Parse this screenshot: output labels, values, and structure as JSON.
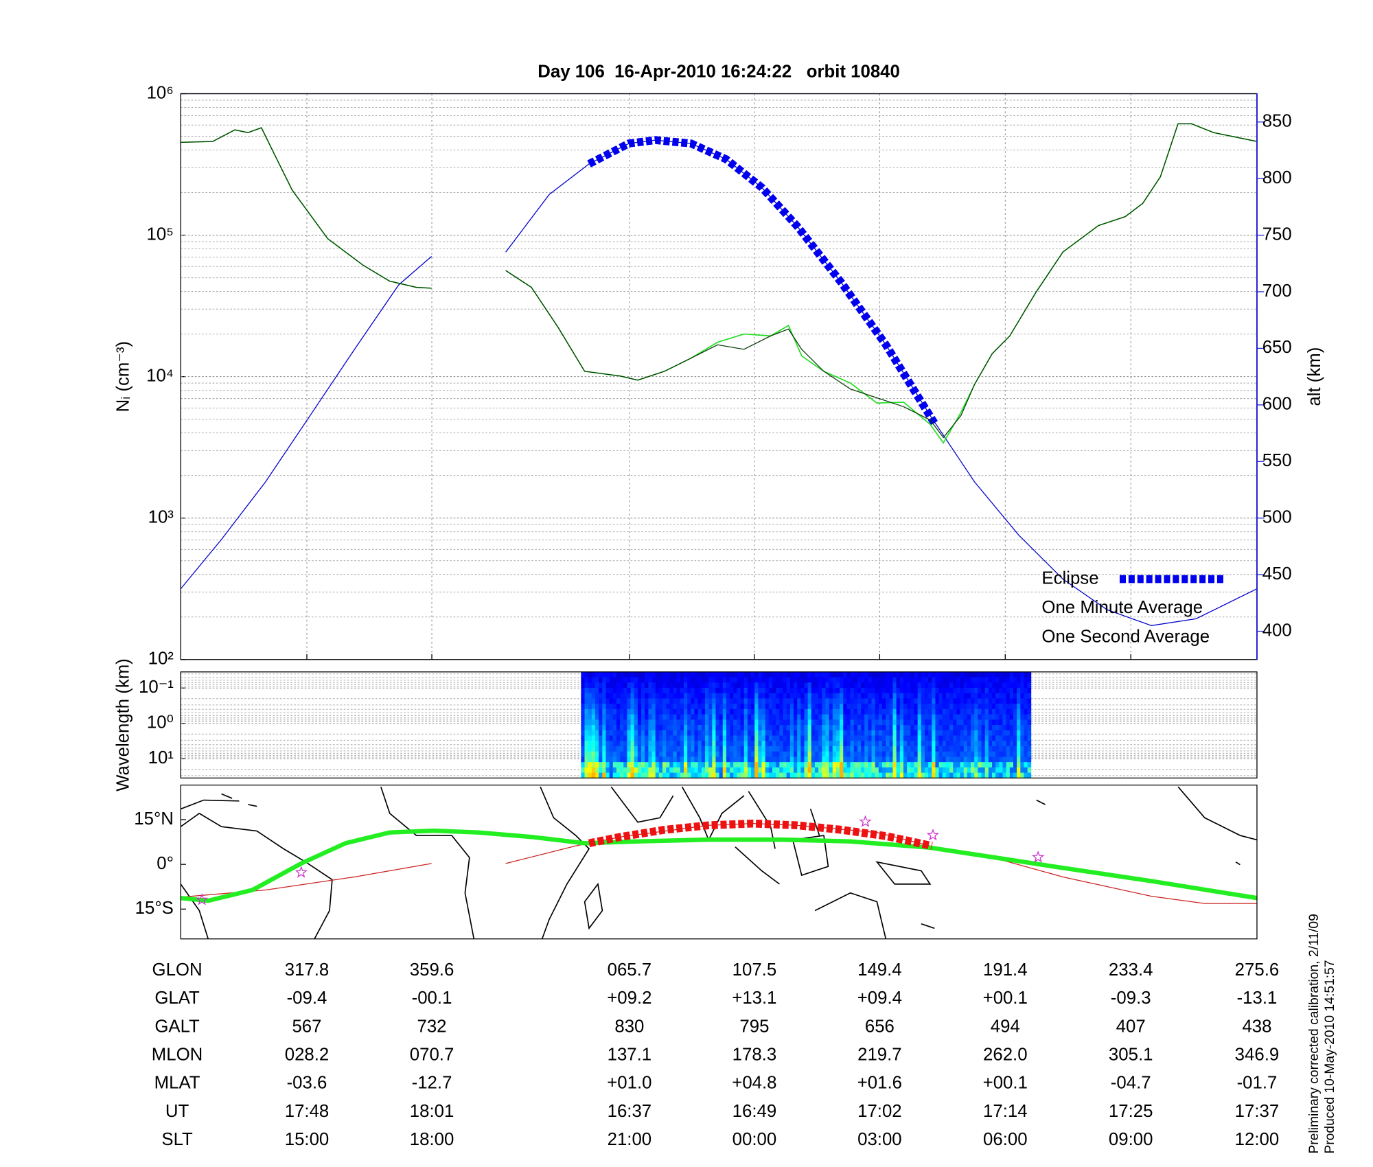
{
  "chart_data": [
    {
      "type": "line",
      "title": "Day 106  16-Apr-2010 16:24:22   orbit 10840",
      "ylabel": "Nᵢ (cm⁻³)",
      "y2label": "alt (km)",
      "xlim": [
        275.6,
        635.6
      ],
      "xticks": [
        317.8,
        359.6,
        425.7,
        467.5,
        509.4,
        551.4,
        593.4,
        635.6
      ],
      "ylim": [
        100,
        1000000
      ],
      "ylog": true,
      "yticks": [
        {
          "value": 100,
          "label": "10²"
        },
        {
          "value": 1000,
          "label": "10³"
        },
        {
          "value": 10000,
          "label": "10⁴"
        },
        {
          "value": 100000,
          "label": "10⁵"
        },
        {
          "value": 1000000,
          "label": "10⁶"
        }
      ],
      "y2lim": [
        375,
        875
      ],
      "y2ticks": [
        400,
        450,
        500,
        550,
        600,
        650,
        700,
        750,
        800,
        850
      ],
      "y2color": "#2020d0",
      "grid": true,
      "legend": "lower right",
      "series": [
        {
          "axis": "y2",
          "color": "#0000cc",
          "line_width": 1,
          "x": [
            275.6,
            289.2,
            304.0,
            318.9,
            333.7,
            348.5,
            359.5,
            372.0,
            384.3,
            398.9,
            412.2,
            425.5,
            434.4,
            446.3,
            458.1,
            470.0,
            481.8,
            496.6,
            511.5,
            526.3,
            541.1,
            555.9,
            570.7,
            585.5,
            600.3,
            615.2,
            635.6
          ],
          "values": [
            437.5,
            481,
            532,
            590.6,
            649,
            706,
            731.25,
            null,
            735,
            786,
            813,
            831,
            834,
            831,
            817,
            792,
            758,
            708,
            653,
            590.6,
            532,
            485,
            446,
            419,
            405,
            411,
            437.5
          ]
        },
        {
          "name": "Eclipse",
          "axis": "y2",
          "color": "#0000ee",
          "line_width": 9,
          "dash": true,
          "x": [
            412.2,
            425.5,
            434.4,
            446.3,
            458.1,
            470.0,
            481.8,
            496.6,
            511.5,
            527.7
          ],
          "values": [
            813,
            831,
            834,
            831,
            817,
            792,
            758,
            708,
            653,
            584
          ]
        },
        {
          "name": "One Second Average",
          "color": "#22dd22",
          "line_width": 1.3,
          "x": [
            275.6,
            286.3,
            293.7,
            298.1,
            302.6,
            307.0,
            312.9,
            324.8,
            336.6,
            345.5,
            354.4,
            359.5,
            372.0,
            384.3,
            392.9,
            401.8,
            410.7,
            422.6,
            428.5,
            437.4,
            446.3,
            455.2,
            464.0,
            472.9,
            478.9,
            483.3,
            490.7,
            499.6,
            508.5,
            517.4,
            526.3,
            530.7,
            536.6,
            541.1,
            547.0,
            552.9,
            561.8,
            570.7,
            582.6,
            591.5,
            597.4,
            603.3,
            609.2,
            613.7,
            621.1,
            635.6
          ],
          "values": [
            453000,
            460000,
            555000,
            531000,
            575000,
            371000,
            208000,
            94400,
            61300,
            47300,
            42800,
            42200,
            null,
            56200,
            42800,
            22400,
            10900,
            10100,
            9440,
            10900,
            13500,
            17500,
            20000,
            19400,
            23000,
            14000,
            10900,
            9000,
            6500,
            6600,
            4600,
            3400,
            5600,
            8790,
            14500,
            19400,
            39800,
            76100,
            117000,
            135000,
            168000,
            259000,
            613000,
            613000,
            531000,
            460000
          ]
        },
        {
          "name": "One Minute Average",
          "color": "#0b3d0b",
          "line_width": 1,
          "x": [
            275.6,
            286.3,
            293.7,
            298.1,
            302.6,
            307.0,
            312.9,
            324.8,
            336.6,
            345.5,
            354.4,
            359.5,
            372.0,
            384.3,
            392.9,
            401.8,
            410.7,
            422.6,
            428.5,
            437.4,
            446.3,
            455.2,
            464.0,
            472.9,
            478.9,
            483.3,
            490.7,
            499.6,
            508.5,
            517.4,
            526.3,
            530.7,
            536.6,
            541.1,
            547.0,
            552.9,
            561.8,
            570.7,
            582.6,
            591.5,
            597.4,
            603.3,
            609.2,
            613.7,
            621.1,
            635.6
          ],
          "values": [
            453000,
            460000,
            555000,
            531000,
            575000,
            371000,
            208000,
            94400,
            61300,
            47300,
            42800,
            42200,
            null,
            56200,
            42800,
            22400,
            10900,
            10100,
            9440,
            10900,
            13500,
            16800,
            15600,
            19400,
            21700,
            15600,
            10900,
            8180,
            7080,
            6130,
            4940,
            3710,
            5310,
            8790,
            14500,
            19400,
            39800,
            76100,
            117000,
            135000,
            168000,
            259000,
            613000,
            613000,
            531000,
            460000
          ]
        }
      ]
    },
    {
      "type": "spectrogram",
      "ylabel": "Wavelength (km)",
      "xlim": [
        275.6,
        635.6
      ],
      "xrange": [
        409.5,
        560.0
      ],
      "ylim": [
        35,
        0.035
      ],
      "ylog": true,
      "yticks": [
        {
          "value": 0.1,
          "label": "10⁻¹"
        },
        {
          "value": 1,
          "label": "10⁰"
        },
        {
          "value": 10,
          "label": "10¹"
        }
      ]
    },
    {
      "type": "map",
      "xlim": [
        275.6,
        635.6
      ],
      "ylim": [
        -25,
        26.6
      ],
      "yticks": [
        {
          "value": -15,
          "label": "15°S"
        },
        {
          "value": 0,
          "label": "0°"
        },
        {
          "value": 15,
          "label": "15°N"
        }
      ],
      "series": [
        {
          "color": "#cc2222",
          "line_width": 1,
          "x": [
            275.6,
            304.0,
            333.7,
            359.5,
            372.0,
            384.3,
            407.7,
            422.6,
            452.2,
            467.0,
            481.8,
            508.5,
            526.3,
            551.2,
            570.7,
            600.3,
            618.1,
            635.6
          ],
          "values": [
            -11.0,
            -8.6,
            -4.2,
            0.3,
            null,
            0.3,
            6.2,
            9.2,
            13.1,
            13.7,
            13.1,
            10.7,
            6.2,
            1.2,
            -4.2,
            -10.7,
            -13.1,
            -13.1
          ]
        },
        {
          "color": "#22ee22",
          "line_width": 5,
          "x": [
            275.6,
            284.8,
            299.6,
            315.9,
            330.7,
            345.5,
            360.3,
            375.2,
            393.0,
            410.7,
            428.5,
            452.2,
            476.0,
            499.6,
            526.3,
            551.2,
            570.7,
            600.3,
            635.6
          ],
          "values": [
            -11.3,
            -12.2,
            -8.6,
            0.3,
            7.1,
            10.7,
            11.3,
            10.7,
            9.2,
            7.1,
            7.7,
            8.3,
            8.3,
            7.7,
            5.6,
            1.8,
            -1.2,
            -5.6,
            -11.3
          ]
        },
        {
          "color": "#ee1111",
          "line_width": 9,
          "dash": true,
          "x": [
            412.2,
            422.6,
            437.4,
            452.2,
            467.0,
            481.8,
            496.6,
            511.5,
            526.9
          ],
          "values": [
            7.1,
            9.2,
            11.6,
            13.1,
            13.7,
            13.1,
            11.6,
            9.5,
            6.2
          ]
        }
      ],
      "markers": {
        "color": "#cc33cc",
        "x": [
          282.7,
          315.9,
          504.6,
          527.2,
          562.4
        ],
        "values": [
          -11.9,
          -2.7,
          14.3,
          9.8,
          2.4
        ]
      }
    }
  ],
  "table": {
    "row_labels": [
      "GLON",
      "GLAT",
      "GALT",
      "MLON",
      "MLAT",
      "UT",
      "SLT"
    ],
    "rows": [
      [
        "317.8",
        "359.6",
        "065.7",
        "107.5",
        "149.4",
        "191.4",
        "233.4",
        "275.6"
      ],
      [
        "-09.4",
        "-00.1",
        "+09.2",
        "+13.1",
        "+09.4",
        "+00.1",
        "-09.3",
        "-13.1"
      ],
      [
        "567",
        "732",
        "830",
        "795",
        "656",
        "494",
        "407",
        "438"
      ],
      [
        "028.2",
        "070.7",
        "137.1",
        "178.3",
        "219.7",
        "262.0",
        "305.1",
        "346.9"
      ],
      [
        "-03.6",
        "-12.7",
        "+01.0",
        "+04.8",
        "+01.6",
        "+00.1",
        "-04.7",
        "-01.7"
      ],
      [
        "17:48",
        "18:01",
        "16:37",
        "16:49",
        "17:02",
        "17:14",
        "17:25",
        "17:37"
      ],
      [
        "15:00",
        "18:00",
        "21:00",
        "00:00",
        "03:00",
        "06:00",
        "09:00",
        "12:00"
      ]
    ]
  },
  "annotations": [
    "Preliminary corrected calibration, 2/11/09",
    "Produced 10-May-2010 14:51:57"
  ]
}
